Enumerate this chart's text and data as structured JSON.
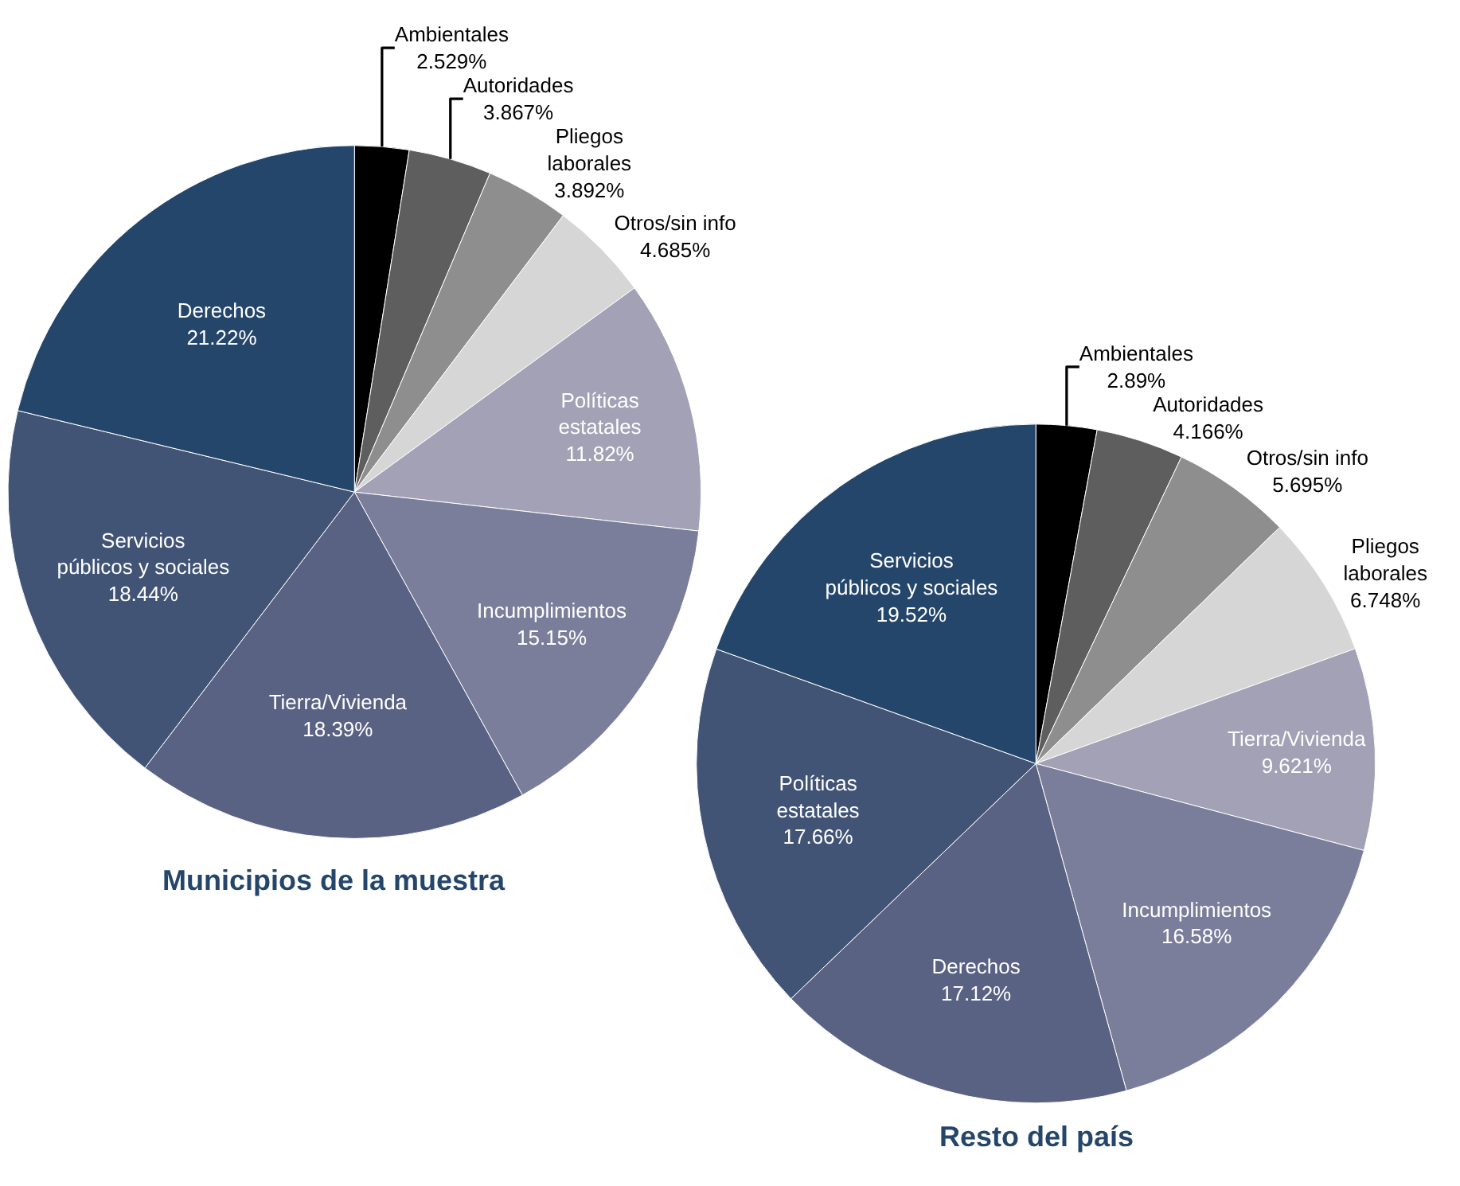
{
  "chart_data": [
    {
      "type": "pie",
      "title": "Municipios de la muestra",
      "categories": [
        "Ambientales",
        "Autoridades",
        "Pliegos\nlaborales",
        "Otros/sin info",
        "Políticas\nestatales",
        "Incumplimientos",
        "Tierra/Vivienda",
        "Servicios\npúblicos y sociales",
        "Derechos"
      ],
      "values": [
        2.529,
        3.867,
        3.892,
        4.685,
        11.82,
        15.15,
        18.39,
        18.44,
        21.22
      ],
      "value_labels": [
        "2.529%",
        "3.867%",
        "3.892%",
        "4.685%",
        "11.82%",
        "15.15%",
        "18.39%",
        "18.44%",
        "21.22%"
      ],
      "colors": [
        "#000000",
        "#5e5e5e",
        "#8e8e8e",
        "#d6d6d6",
        "#a2a1b6",
        "#7b7e9b",
        "#5a6283",
        "#415476",
        "#25466b"
      ]
    },
    {
      "type": "pie",
      "title": "Resto del país",
      "categories": [
        "Ambientales",
        "Autoridades",
        "Otros/sin info",
        "Pliegos\nlaborales",
        "Tierra/Vivienda",
        "Incumplimientos",
        "Derechos",
        "Políticas\nestatales",
        "Servicios\npúblicos y sociales"
      ],
      "values": [
        2.89,
        4.166,
        5.695,
        6.748,
        9.621,
        16.58,
        17.12,
        17.66,
        19.52
      ],
      "value_labels": [
        "2.89%",
        "4.166%",
        "5.695%",
        "6.748%",
        "9.621%",
        "16.58%",
        "17.12%",
        "17.66%",
        "19.52%"
      ],
      "colors": [
        "#000000",
        "#5e5e5e",
        "#8e8e8e",
        "#d6d6d6",
        "#a2a1b6",
        "#7b7e9b",
        "#5a6283",
        "#415476",
        "#25466b"
      ]
    }
  ]
}
